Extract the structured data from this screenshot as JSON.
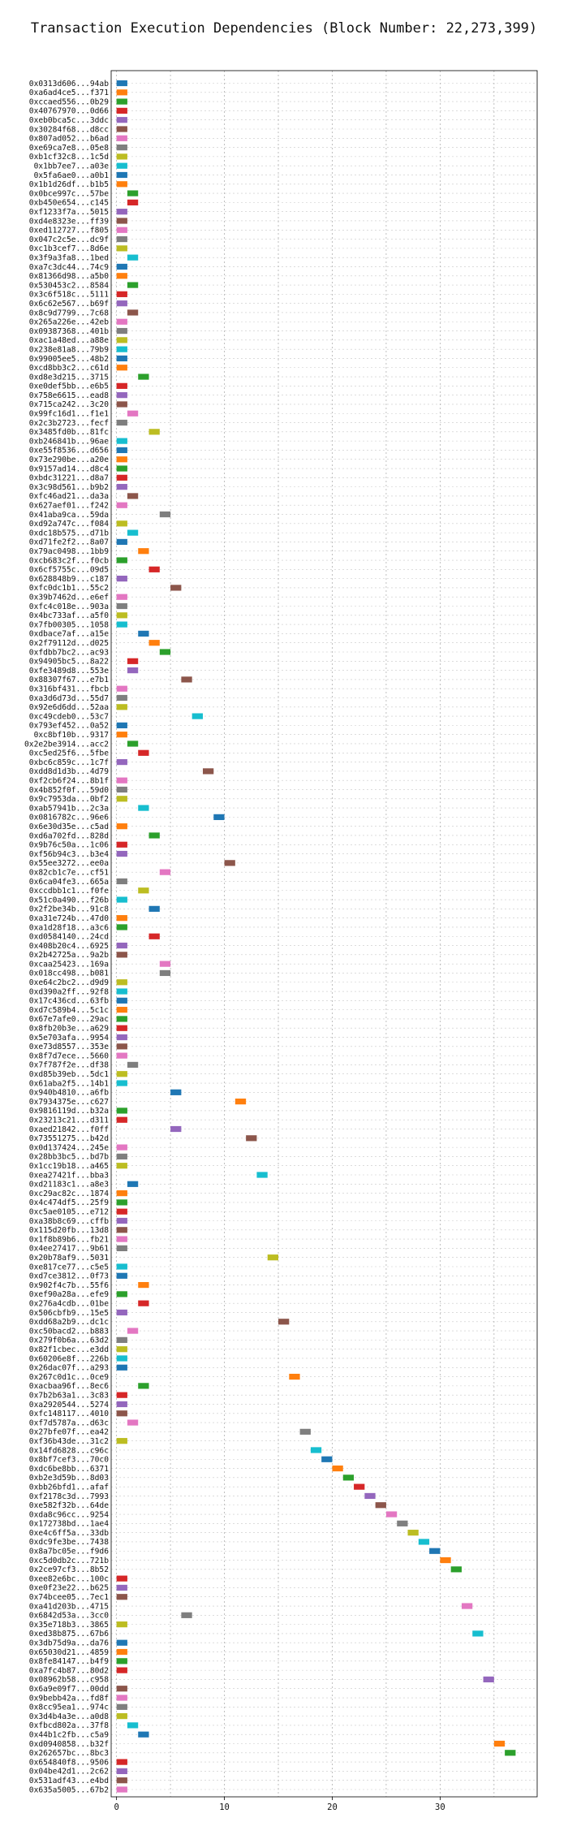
{
  "chart_data": {
    "type": "bar",
    "orientation": "horizontal",
    "title": "Transaction Execution Dependencies (Block Number: 22,273,399)",
    "xlabel": "",
    "ylabel": "",
    "grid": true,
    "xlim": [
      -0.5,
      39
    ],
    "xticks": [
      0,
      10,
      20,
      30
    ],
    "palette": [
      "#1f77b4",
      "#ff7f0e",
      "#2ca02c",
      "#d62728",
      "#9467bd",
      "#8c564b",
      "#e377c2",
      "#7f7f7f",
      "#bcbd22",
      "#17becf"
    ],
    "transactions": [
      {
        "label": "0x0313d606...94ab",
        "start": 0
      },
      {
        "label": "0xa6ad4ce5...f371",
        "start": 0
      },
      {
        "label": "0xccaed556...0b29",
        "start": 0
      },
      {
        "label": "0x40767970...0d66",
        "start": 0
      },
      {
        "label": "0xeb0bca5c...3ddc",
        "start": 0
      },
      {
        "label": "0x30284f68...d8cc",
        "start": 0
      },
      {
        "label": "0x807ad052...b6ad",
        "start": 0
      },
      {
        "label": "0xe69ca7e8...05e8",
        "start": 0
      },
      {
        "label": "0xb1cf32c8...1c5d",
        "start": 0
      },
      {
        "label": "0x1bb7ee7...a03e",
        "start": 0
      },
      {
        "label": "0x5fa6ae0...a0b1",
        "start": 0
      },
      {
        "label": "0x1b1d26df...b1b5",
        "start": 0
      },
      {
        "label": "0x0bce997c...57be",
        "start": 1
      },
      {
        "label": "0xb450e654...c145",
        "start": 1
      },
      {
        "label": "0xf1233f7a...5015",
        "start": 0
      },
      {
        "label": "0xd4e8323e...ff39",
        "start": 0
      },
      {
        "label": "0xed112727...f805",
        "start": 0
      },
      {
        "label": "0x047c2c5e...dc9f",
        "start": 0
      },
      {
        "label": "0xc1b3cef7...8d6e",
        "start": 0
      },
      {
        "label": "0x3f9a3fa8...1bed",
        "start": 1
      },
      {
        "label": "0xa7c3dc44...74c9",
        "start": 0
      },
      {
        "label": "0x81366d98...a5b0",
        "start": 0
      },
      {
        "label": "0x530453c2...8584",
        "start": 1
      },
      {
        "label": "0x3c6f518c...5111",
        "start": 0
      },
      {
        "label": "0x6c62e567...b69f",
        "start": 0
      },
      {
        "label": "0x8c9d7799...7c68",
        "start": 1
      },
      {
        "label": "0x265a226e...42eb",
        "start": 0
      },
      {
        "label": "0x09387368...401b",
        "start": 0
      },
      {
        "label": "0xac1a48ed...a88e",
        "start": 0
      },
      {
        "label": "0x238e81a8...79b9",
        "start": 0
      },
      {
        "label": "0x99005ee5...48b2",
        "start": 0
      },
      {
        "label": "0xcd8bb3c2...c61d",
        "start": 0
      },
      {
        "label": "0xd8e3d215...3715",
        "start": 2
      },
      {
        "label": "0xe0def5bb...e6b5",
        "start": 0
      },
      {
        "label": "0x758e6615...ead8",
        "start": 0
      },
      {
        "label": "0x715ca242...3c20",
        "start": 0
      },
      {
        "label": "0x99fc16d1...f1e1",
        "start": 1
      },
      {
        "label": "0x2c3b2723...fecf",
        "start": 0
      },
      {
        "label": "0x3485fd0b...81fc",
        "start": 3
      },
      {
        "label": "0xb246841b...96ae",
        "start": 0
      },
      {
        "label": "0xe55f8536...d656",
        "start": 0
      },
      {
        "label": "0x73e290be...a20e",
        "start": 0
      },
      {
        "label": "0x9157ad14...d8c4",
        "start": 0
      },
      {
        "label": "0xbdc31221...d8a7",
        "start": 0
      },
      {
        "label": "0x3c98d561...b9b2",
        "start": 0
      },
      {
        "label": "0xfc46ad21...da3a",
        "start": 1
      },
      {
        "label": "0x627aef01...f242",
        "start": 0
      },
      {
        "label": "0x41aba9ca...59da",
        "start": 4
      },
      {
        "label": "0xd92a747c...f084",
        "start": 0
      },
      {
        "label": "0xdc18b575...d71b",
        "start": 1
      },
      {
        "label": "0xd71fe2f2...8a07",
        "start": 0
      },
      {
        "label": "0x79ac0498...1bb9",
        "start": 2
      },
      {
        "label": "0xcb683c2f...f0cb",
        "start": 0
      },
      {
        "label": "0x6cf5755c...09d5",
        "start": 3
      },
      {
        "label": "0x628848b9...c187",
        "start": 0
      },
      {
        "label": "0xfc0dc1b1...55c2",
        "start": 5
      },
      {
        "label": "0x39b7462d...e6ef",
        "start": 0
      },
      {
        "label": "0xfc4c018e...903a",
        "start": 0
      },
      {
        "label": "0x4bc733af...a5f0",
        "start": 0
      },
      {
        "label": "0x7fb00305...1058",
        "start": 0
      },
      {
        "label": "0xdbace7af...a15e",
        "start": 2
      },
      {
        "label": "0x2f79112d...d025",
        "start": 3
      },
      {
        "label": "0xfdbb7bc2...ac93",
        "start": 4
      },
      {
        "label": "0x94905bc5...8a22",
        "start": 1
      },
      {
        "label": "0xfe3489d8...553e",
        "start": 1
      },
      {
        "label": "0x88307f67...e7b1",
        "start": 6
      },
      {
        "label": "0x316bf431...fbcb",
        "start": 0
      },
      {
        "label": "0xa3d6d73d...55d7",
        "start": 0
      },
      {
        "label": "0x92e6d6dd...52aa",
        "start": 0
      },
      {
        "label": "0xc49cdeb0...53c7",
        "start": 7
      },
      {
        "label": "0x793ef452...0a52",
        "start": 0
      },
      {
        "label": "0xc8bf10b...9317",
        "start": 0
      },
      {
        "label": "0x2e2be3914...acc2",
        "start": 1
      },
      {
        "label": "0xc5ed25f6...5fbe",
        "start": 2
      },
      {
        "label": "0xbc6c859c...1c7f",
        "start": 0
      },
      {
        "label": "0xdd8d1d3b...4d79",
        "start": 8
      },
      {
        "label": "0xf2cb6f24...8b1f",
        "start": 0
      },
      {
        "label": "0x4b852f0f...59d0",
        "start": 0
      },
      {
        "label": "0x9c7953da...0bf2",
        "start": 0
      },
      {
        "label": "0xab57941b...2c3a",
        "start": 2
      },
      {
        "label": "0x0816782c...96e6",
        "start": 9
      },
      {
        "label": "0x6e30d35e...c5ad",
        "start": 0
      },
      {
        "label": "0xd6a702fd...828d",
        "start": 3
      },
      {
        "label": "0x9b76c50a...1c06",
        "start": 0
      },
      {
        "label": "0xf56b94c3...b3e4",
        "start": 0
      },
      {
        "label": "0x55ee3272...ee0a",
        "start": 10
      },
      {
        "label": "0x82cb1c7e...cf51",
        "start": 4
      },
      {
        "label": "0x6ca04fe3...665a",
        "start": 0
      },
      {
        "label": "0xccdbb1c1...f0fe",
        "start": 2
      },
      {
        "label": "0x51c0a490...f26b",
        "start": 0
      },
      {
        "label": "0x2f2be34b...91c8",
        "start": 3
      },
      {
        "label": "0xa31e724b...47d0",
        "start": 0
      },
      {
        "label": "0xa1d28f18...a3c6",
        "start": 0
      },
      {
        "label": "0xd0584140...24cd",
        "start": 3
      },
      {
        "label": "0x408b20c4...6925",
        "start": 0
      },
      {
        "label": "0x2b42725a...9a2b",
        "start": 0
      },
      {
        "label": "0xcaa25423...169a",
        "start": 4
      },
      {
        "label": "0x018cc498...b081",
        "start": 4
      },
      {
        "label": "0xe64c2bc2...d9d9",
        "start": 0
      },
      {
        "label": "0xd390a2ff...92f8",
        "start": 0
      },
      {
        "label": "0x17c436cd...63fb",
        "start": 0
      },
      {
        "label": "0xd7c589b4...5c1c",
        "start": 0
      },
      {
        "label": "0x67e7afe0...29ac",
        "start": 0
      },
      {
        "label": "0x8fb20b3e...a629",
        "start": 0
      },
      {
        "label": "0x5e703afa...9954",
        "start": 0
      },
      {
        "label": "0xe73d8557...353e",
        "start": 0
      },
      {
        "label": "0x8f7d7ece...5660",
        "start": 0
      },
      {
        "label": "0x7f787f2e...df38",
        "start": 1
      },
      {
        "label": "0xd85b39eb...5dc1",
        "start": 0
      },
      {
        "label": "0x61aba2f5...14b1",
        "start": 0
      },
      {
        "label": "0x940b4810...a6fb",
        "start": 5
      },
      {
        "label": "0x7934375e...c627",
        "start": 11
      },
      {
        "label": "0x9816119d...b32a",
        "start": 0
      },
      {
        "label": "0x23213c21...d311",
        "start": 0
      },
      {
        "label": "0xaed21842...f0ff",
        "start": 5
      },
      {
        "label": "0x73551275...b42d",
        "start": 12
      },
      {
        "label": "0x0d137424...245e",
        "start": 0
      },
      {
        "label": "0x28bb3bc5...bd7b",
        "start": 0
      },
      {
        "label": "0x1cc19b18...a465",
        "start": 0
      },
      {
        "label": "0xea27421f...bba3",
        "start": 13
      },
      {
        "label": "0xd21183c1...a8e3",
        "start": 1
      },
      {
        "label": "0xc29ac82c...1874",
        "start": 0
      },
      {
        "label": "0x4c474df5...25f9",
        "start": 0
      },
      {
        "label": "0xc5ae0105...e712",
        "start": 0
      },
      {
        "label": "0xa38b8c69...cffb",
        "start": 0
      },
      {
        "label": "0x115d20fb...13d8",
        "start": 0
      },
      {
        "label": "0x1f8b89b6...fb21",
        "start": 0
      },
      {
        "label": "0x4ee27417...9b61",
        "start": 0
      },
      {
        "label": "0x20b78af9...5031",
        "start": 14
      },
      {
        "label": "0xe817ce77...c5e5",
        "start": 0
      },
      {
        "label": "0xd7ce3812...0f73",
        "start": 0
      },
      {
        "label": "0x902f4c7b...55f6",
        "start": 2
      },
      {
        "label": "0xef90a28a...efe9",
        "start": 0
      },
      {
        "label": "0x276a4cdb...01be",
        "start": 2
      },
      {
        "label": "0x506cbfb9...15e5",
        "start": 0
      },
      {
        "label": "0xdd68a2b9...dc1c",
        "start": 15
      },
      {
        "label": "0xc50bacd2...b883",
        "start": 1
      },
      {
        "label": "0x279f0b6a...63d2",
        "start": 0
      },
      {
        "label": "0x82f1cbec...e3dd",
        "start": 0
      },
      {
        "label": "0x60206e8f...226b",
        "start": 0
      },
      {
        "label": "0x26dac07f...a293",
        "start": 0
      },
      {
        "label": "0x267c0d1c...0ce9",
        "start": 16
      },
      {
        "label": "0xacbaa96f...8ec6",
        "start": 2
      },
      {
        "label": "0x7b2b63a1...3c83",
        "start": 0
      },
      {
        "label": "0xa2920544...5274",
        "start": 0
      },
      {
        "label": "0xfc148117...4010",
        "start": 0
      },
      {
        "label": "0xf7d5787a...d63c",
        "start": 1
      },
      {
        "label": "0x27bfe07f...ea42",
        "start": 17
      },
      {
        "label": "0xf36b43de...31c2",
        "start": 0
      },
      {
        "label": "0x14fd6828...c96c",
        "start": 18
      },
      {
        "label": "0x8bf7cef3...70c0",
        "start": 19
      },
      {
        "label": "0xdc6be8bb...6371",
        "start": 20
      },
      {
        "label": "0xb2e3d59b...8d03",
        "start": 21
      },
      {
        "label": "0xbb26bfd1...afaf",
        "start": 22
      },
      {
        "label": "0xf2178c3d...7993",
        "start": 23
      },
      {
        "label": "0xe582f32b...64de",
        "start": 24
      },
      {
        "label": "0xda8c96cc...9254",
        "start": 25
      },
      {
        "label": "0x172738bd...1ae4",
        "start": 26
      },
      {
        "label": "0xe4c6ff5a...33db",
        "start": 27
      },
      {
        "label": "0xdc9fe3be...7438",
        "start": 28
      },
      {
        "label": "0x8a7bc05e...f9d6",
        "start": 29
      },
      {
        "label": "0xc5d0db2c...721b",
        "start": 30
      },
      {
        "label": "0x2ce97cf3...8b52",
        "start": 31
      },
      {
        "label": "0xee82e6bc...100c",
        "start": 0
      },
      {
        "label": "0xe0f23e22...b625",
        "start": 0
      },
      {
        "label": "0x74bcee05...7ec1",
        "start": 0
      },
      {
        "label": "0xa41d203b...4715",
        "start": 32
      },
      {
        "label": "0x6842d53a...3cc0",
        "start": 6
      },
      {
        "label": "0x35e718b3...3865",
        "start": 0
      },
      {
        "label": "0xed38b875...67b6",
        "start": 33
      },
      {
        "label": "0x3db75d9a...da76",
        "start": 0
      },
      {
        "label": "0x65030d21...4859",
        "start": 0
      },
      {
        "label": "0x8fe84147...b4f9",
        "start": 0
      },
      {
        "label": "0xa7fc4b87...80d2",
        "start": 0
      },
      {
        "label": "0x08962b58...c958",
        "start": 34
      },
      {
        "label": "0x6a9e09f7...00dd",
        "start": 0
      },
      {
        "label": "0x9bebb42a...fd8f",
        "start": 0
      },
      {
        "label": "0x8cc95ea1...974c",
        "start": 0
      },
      {
        "label": "0x3d4b4a3e...a0d8",
        "start": 0
      },
      {
        "label": "0xfbcd802a...37f8",
        "start": 1
      },
      {
        "label": "0x44b1c2fb...c5a9",
        "start": 2
      },
      {
        "label": "0xd0940858...b32f",
        "start": 35
      },
      {
        "label": "0x262657bc...8bc3",
        "start": 36
      },
      {
        "label": "0x654840f8...9506",
        "start": 0
      },
      {
        "label": "0x04be42d1...2c62",
        "start": 0
      },
      {
        "label": "0x531adf43...e4bd",
        "start": 0
      },
      {
        "label": "0x635a5005...67b2",
        "start": 0
      }
    ]
  }
}
